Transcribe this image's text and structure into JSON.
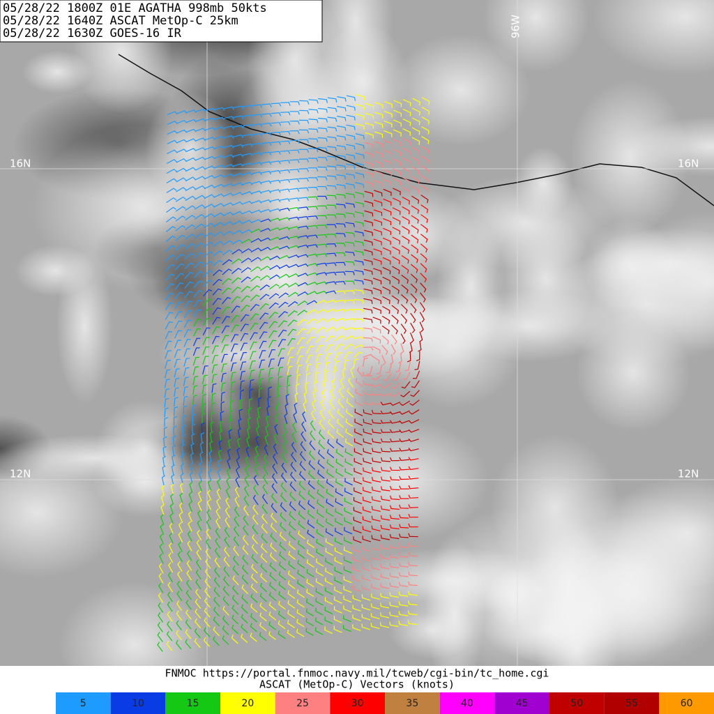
{
  "header": {
    "lines": [
      "05/28/22 1800Z  01E AGATHA 998mb 50kts",
      "05/28/22 1640Z  ASCAT MetOp-C 25km",
      "05/28/22 1630Z  GOES-16 IR"
    ]
  },
  "grid_labels": {
    "lat_top_left": "16N",
    "lat_top_right": "16N",
    "lat_bottom_left": "12N",
    "lat_bottom_right": "12N",
    "lon": "96W"
  },
  "footer": {
    "lines": [
      "FNMOC https://portal.fnmoc.navy.mil/tcweb/cgi-bin/tc_home.cgi",
      "ASCAT (MetOp-C) Vectors (knots)"
    ]
  },
  "colorbar": [
    {
      "label": "5",
      "color": "#1e9bff"
    },
    {
      "label": "10",
      "color": "#0a3ce6"
    },
    {
      "label": "15",
      "color": "#14c814"
    },
    {
      "label": "20",
      "color": "#ffff00"
    },
    {
      "label": "25",
      "color": "#ff8080"
    },
    {
      "label": "30",
      "color": "#ff0000"
    },
    {
      "label": "35",
      "color": "#c08040"
    },
    {
      "label": "40",
      "color": "#ff00ff"
    },
    {
      "label": "45",
      "color": "#a000d0"
    },
    {
      "label": "50",
      "color": "#c00000"
    },
    {
      "label": "55",
      "color": "#b00000"
    },
    {
      "label": "60",
      "color": "#ff9900"
    }
  ]
}
